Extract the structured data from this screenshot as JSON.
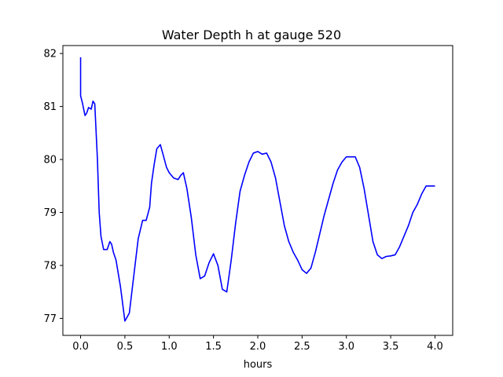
{
  "chart_data": {
    "type": "line",
    "title": "Water Depth h at gauge 520",
    "xlabel": "hours",
    "ylabel": "",
    "xlim": [
      -0.2,
      4.2
    ],
    "ylim": [
      76.68,
      82.15
    ],
    "xticks": [
      0.0,
      0.5,
      1.0,
      1.5,
      2.0,
      2.5,
      3.0,
      3.5,
      4.0
    ],
    "xtick_labels": [
      "0.0",
      "0.5",
      "1.0",
      "1.5",
      "2.0",
      "2.5",
      "3.0",
      "3.5",
      "4.0"
    ],
    "yticks": [
      77,
      78,
      79,
      80,
      81,
      82
    ],
    "ytick_labels": [
      "77",
      "78",
      "79",
      "80",
      "81",
      "82"
    ],
    "grid": false,
    "series": [
      {
        "color": "#0000ff",
        "x": [
          0.0,
          0.0,
          0.005,
          0.02,
          0.05,
          0.07,
          0.09,
          0.12,
          0.14,
          0.16,
          0.17,
          0.19,
          0.21,
          0.23,
          0.26,
          0.3,
          0.33,
          0.35,
          0.37,
          0.4,
          0.45,
          0.5,
          0.55,
          0.6,
          0.65,
          0.7,
          0.74,
          0.78,
          0.8,
          0.83,
          0.86,
          0.9,
          0.93,
          0.97,
          1.0,
          1.05,
          1.1,
          1.13,
          1.16,
          1.2,
          1.25,
          1.3,
          1.35,
          1.4,
          1.45,
          1.5,
          1.55,
          1.6,
          1.65,
          1.7,
          1.75,
          1.8,
          1.85,
          1.9,
          1.95,
          2.0,
          2.05,
          2.1,
          2.15,
          2.2,
          2.25,
          2.3,
          2.35,
          2.4,
          2.45,
          2.5,
          2.55,
          2.6,
          2.65,
          2.7,
          2.75,
          2.8,
          2.85,
          2.9,
          2.95,
          3.0,
          3.05,
          3.1,
          3.15,
          3.2,
          3.25,
          3.3,
          3.35,
          3.4,
          3.45,
          3.5,
          3.55,
          3.6,
          3.65,
          3.7,
          3.75,
          3.8,
          3.85,
          3.9,
          3.95,
          4.0
        ],
        "y": [
          81.93,
          81.2,
          81.17,
          81.07,
          80.83,
          80.88,
          80.98,
          80.95,
          81.1,
          81.05,
          80.7,
          80.0,
          79.0,
          78.55,
          78.3,
          78.3,
          78.45,
          78.4,
          78.25,
          78.1,
          77.6,
          76.95,
          77.1,
          77.8,
          78.5,
          78.85,
          78.85,
          79.1,
          79.55,
          79.9,
          80.2,
          80.28,
          80.1,
          79.85,
          79.75,
          79.65,
          79.62,
          79.7,
          79.75,
          79.45,
          78.9,
          78.2,
          77.75,
          77.8,
          78.05,
          78.22,
          78.0,
          77.55,
          77.5,
          78.1,
          78.8,
          79.4,
          79.7,
          79.95,
          80.12,
          80.15,
          80.1,
          80.12,
          79.95,
          79.65,
          79.2,
          78.75,
          78.45,
          78.25,
          78.1,
          77.92,
          77.85,
          77.95,
          78.25,
          78.6,
          78.95,
          79.25,
          79.55,
          79.8,
          79.95,
          80.05,
          80.05,
          80.05,
          79.85,
          79.45,
          78.95,
          78.45,
          78.2,
          78.13,
          78.17,
          78.18,
          78.2,
          78.35,
          78.55,
          78.75,
          79.0,
          79.15,
          79.35,
          79.5,
          79.5,
          79.5
        ]
      }
    ]
  }
}
